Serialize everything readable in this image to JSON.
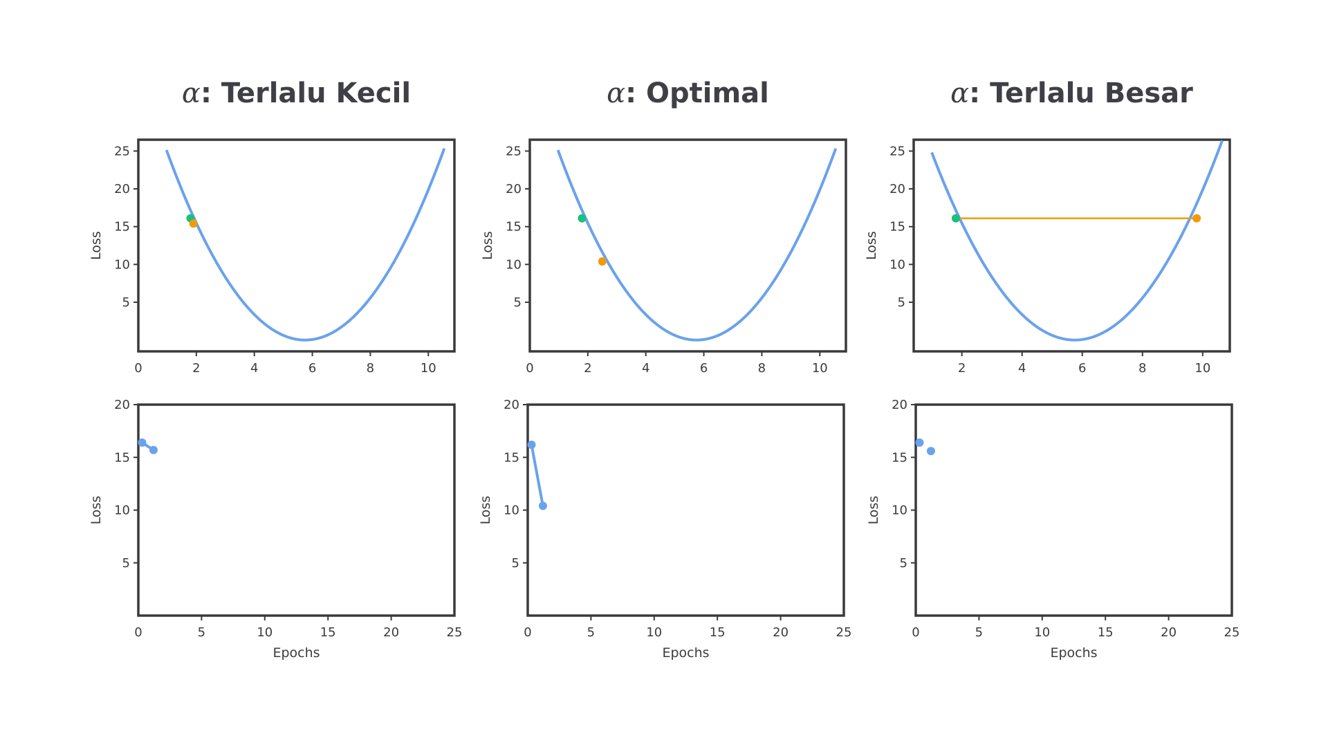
{
  "chart_data": [
    {
      "type": "line",
      "title_symbol": "α",
      "title_text": ": Terlalu Kecil",
      "top": {
        "xlim": [
          0,
          10.9
        ],
        "ylim": [
          -1.5,
          26.5
        ],
        "xticks": [
          0,
          2,
          4,
          6,
          8,
          10
        ],
        "yticks": [
          5,
          10,
          15,
          20,
          25
        ],
        "xlabel": "",
        "ylabel": "Loss",
        "curve": {
          "vertex_x": 5.75,
          "vertex_y": 0,
          "a": 1.1,
          "x_range": [
            0.97,
            10.55
          ]
        },
        "points": [
          {
            "x": 1.8,
            "y": 16.1,
            "color": "#1dbf7e"
          },
          {
            "x": 1.9,
            "y": 15.4,
            "color": "#f29a0d"
          }
        ],
        "connector": null
      },
      "bottom": {
        "xlim": [
          0,
          25
        ],
        "ylim": [
          0,
          20
        ],
        "xticks": [
          0,
          5,
          10,
          15,
          20,
          25
        ],
        "yticks": [
          5,
          10,
          15,
          20
        ],
        "xlabel": "Epochs",
        "ylabel": "Loss",
        "points": [
          {
            "x": 0.3,
            "y": 16.4
          },
          {
            "x": 1.2,
            "y": 15.7
          }
        ],
        "connected": true
      }
    },
    {
      "type": "line",
      "title_symbol": "α",
      "title_text": ": Optimal",
      "top": {
        "xlim": [
          0,
          10.9
        ],
        "ylim": [
          -1.5,
          26.5
        ],
        "xticks": [
          0,
          2,
          4,
          6,
          8,
          10
        ],
        "yticks": [
          5,
          10,
          15,
          20,
          25
        ],
        "xlabel": "",
        "ylabel": "Loss",
        "curve": {
          "vertex_x": 5.75,
          "vertex_y": 0,
          "a": 1.1,
          "x_range": [
            0.97,
            10.55
          ]
        },
        "points": [
          {
            "x": 1.8,
            "y": 16.1,
            "color": "#1dbf7e"
          },
          {
            "x": 2.5,
            "y": 10.4,
            "color": "#f29a0d"
          }
        ],
        "connector": null
      },
      "bottom": {
        "xlim": [
          0,
          25
        ],
        "ylim": [
          0,
          20
        ],
        "xticks": [
          0,
          5,
          10,
          15,
          20,
          25
        ],
        "yticks": [
          5,
          10,
          15,
          20
        ],
        "xlabel": "Epochs",
        "ylabel": "Loss",
        "points": [
          {
            "x": 0.3,
            "y": 16.2
          },
          {
            "x": 1.2,
            "y": 10.4
          }
        ],
        "connected": true
      }
    },
    {
      "type": "line",
      "title_symbol": "α",
      "title_text": ": Terlalu Besar",
      "top": {
        "xlim": [
          0.4,
          10.9
        ],
        "ylim": [
          -1.5,
          26.5
        ],
        "xticks": [
          2,
          4,
          6,
          8,
          10
        ],
        "yticks": [
          5,
          10,
          15,
          20,
          25
        ],
        "xlabel": "",
        "ylabel": "Loss",
        "curve": {
          "vertex_x": 5.75,
          "vertex_y": 0,
          "a": 1.1,
          "x_range": [
            1.0,
            10.65
          ]
        },
        "points": [
          {
            "x": 1.8,
            "y": 16.1,
            "color": "#1dbf7e"
          },
          {
            "x": 9.8,
            "y": 16.1,
            "color": "#f29a0d"
          }
        ],
        "connector": {
          "color": "#f29a0d"
        }
      },
      "bottom": {
        "xlim": [
          0,
          25
        ],
        "ylim": [
          0,
          20
        ],
        "xticks": [
          0,
          5,
          10,
          15,
          20,
          25
        ],
        "yticks": [
          5,
          10,
          15,
          20
        ],
        "xlabel": "Epochs",
        "ylabel": "Loss",
        "points": [
          {
            "x": 0.3,
            "y": 16.4
          },
          {
            "x": 1.2,
            "y": 15.6
          }
        ],
        "connected": false
      }
    }
  ],
  "colors": {
    "curve": "#6aa2ec",
    "frame": "#3a3a3d",
    "text": "#3b3b3b",
    "title": "#3f3f46"
  }
}
